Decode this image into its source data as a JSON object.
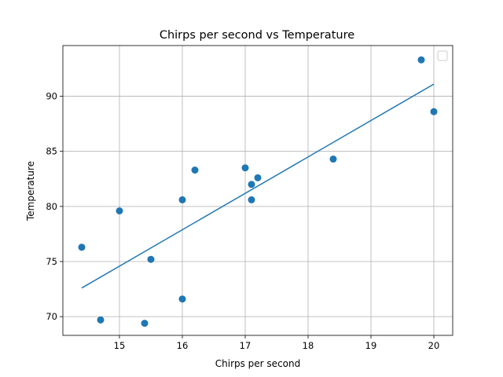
{
  "chart_data": {
    "type": "scatter",
    "title": "Chirps per second vs Temperature",
    "xlabel": "Chirps per second",
    "ylabel": "Temperature",
    "xlim": [
      14.1,
      20.3
    ],
    "ylim": [
      68.3,
      94.6
    ],
    "xticks": [
      15,
      16,
      17,
      18,
      19,
      20
    ],
    "yticks": [
      70,
      75,
      80,
      85,
      90
    ],
    "grid": true,
    "legend": "top-right (empty)",
    "color": "#1f77b4",
    "series": [
      {
        "type": "scatter",
        "points": [
          {
            "x": 20.0,
            "y": 88.6
          },
          {
            "x": 16.0,
            "y": 71.6
          },
          {
            "x": 19.8,
            "y": 93.3
          },
          {
            "x": 18.4,
            "y": 84.3
          },
          {
            "x": 17.1,
            "y": 80.6
          },
          {
            "x": 15.5,
            "y": 75.2
          },
          {
            "x": 14.7,
            "y": 69.7
          },
          {
            "x": 15.4,
            "y": 69.4
          },
          {
            "x": 16.2,
            "y": 83.3
          },
          {
            "x": 15.0,
            "y": 79.6
          },
          {
            "x": 17.2,
            "y": 82.6
          },
          {
            "x": 16.0,
            "y": 80.6
          },
          {
            "x": 17.0,
            "y": 83.5
          },
          {
            "x": 17.1,
            "y": 82.0
          },
          {
            "x": 14.4,
            "y": 76.3
          }
        ]
      },
      {
        "type": "line",
        "points": [
          {
            "x": 14.4,
            "y": 72.6
          },
          {
            "x": 20.0,
            "y": 91.1
          }
        ]
      }
    ]
  }
}
